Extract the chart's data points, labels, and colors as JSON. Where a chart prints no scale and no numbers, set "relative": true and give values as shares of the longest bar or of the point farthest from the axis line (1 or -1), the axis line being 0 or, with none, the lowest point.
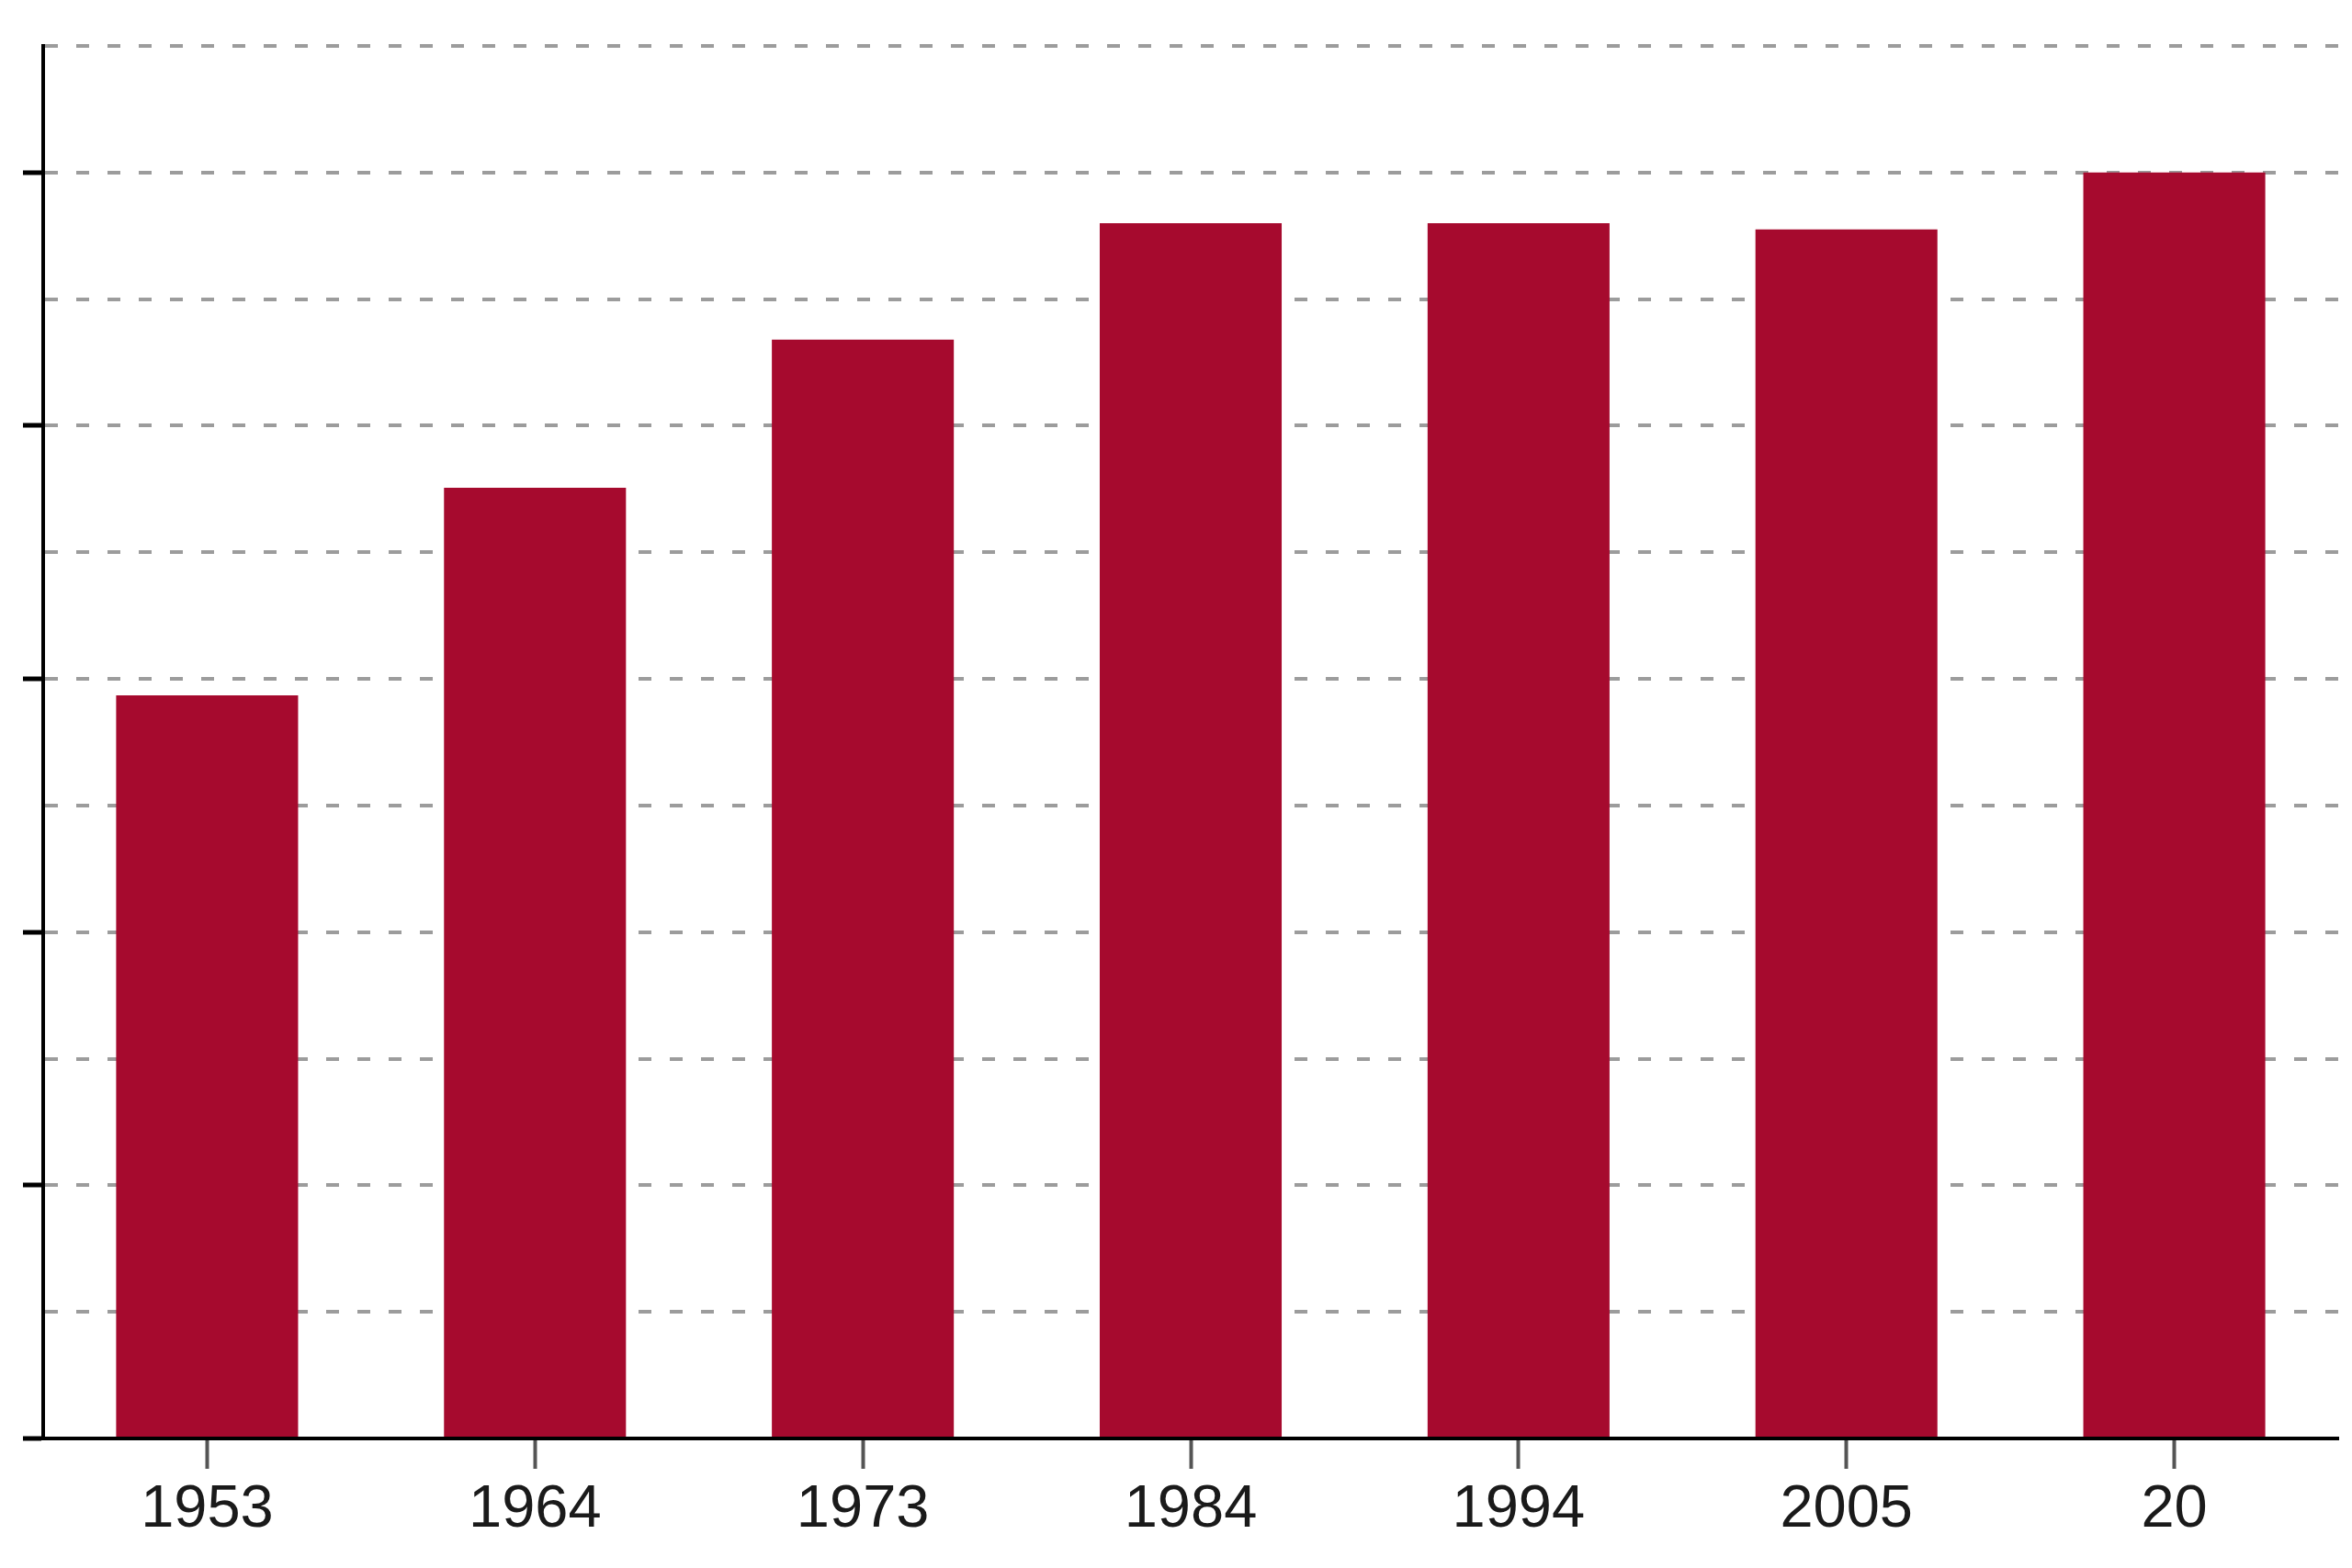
{
  "chart_data": {
    "type": "bar",
    "categories": [
      "1953",
      "1964",
      "1973",
      "1984",
      "1994",
      "2005",
      "20"
    ],
    "values": [
      0.587,
      0.751,
      0.868,
      0.96,
      0.96,
      0.955,
      1
    ],
    "color": "#a60a2e",
    "relative": true,
    "grid": "y"
  }
}
